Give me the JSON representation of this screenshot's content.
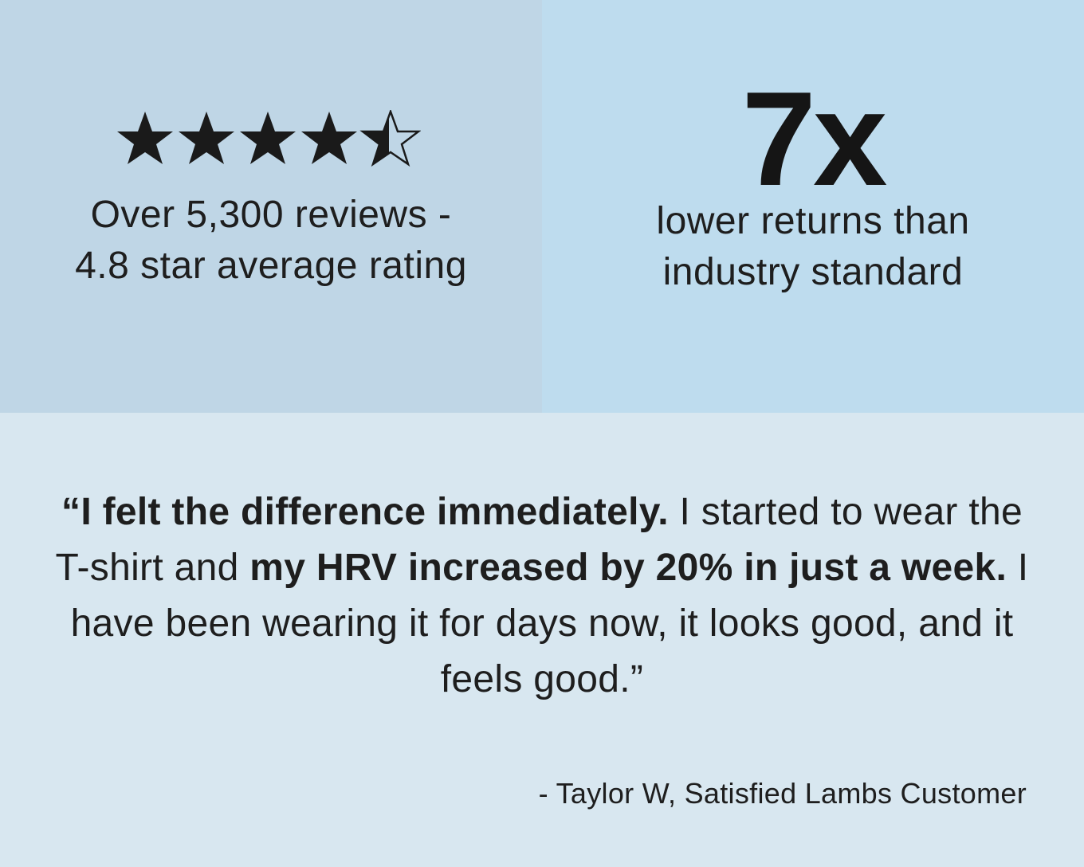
{
  "rating": {
    "stars_value": 4.5,
    "stars_max": 5,
    "line1": "Over 5,300 reviews -",
    "line2": "4.8 star average rating"
  },
  "stat": {
    "value": "7x",
    "line1": "lower returns than",
    "line2": "industry standard"
  },
  "testimonial": {
    "open_quote": "“",
    "bold1": "I felt the difference immediately.",
    "text1": " I started to wear the T-shirt and ",
    "bold2": "my HRV increased by 20% in just a week.",
    "text2": " I have been wearing it for days now, it looks good, and it feels good.",
    "close_quote": "”",
    "attribution": "- Taylor W, Satisfied Lambs Customer"
  },
  "colors": {
    "panel_left": "#bfd6e6",
    "panel_right": "#bedcee",
    "panel_bottom": "#d8e7f0",
    "text": "#1e1e1e"
  },
  "icons": [
    "star-icon",
    "half-star-icon"
  ]
}
